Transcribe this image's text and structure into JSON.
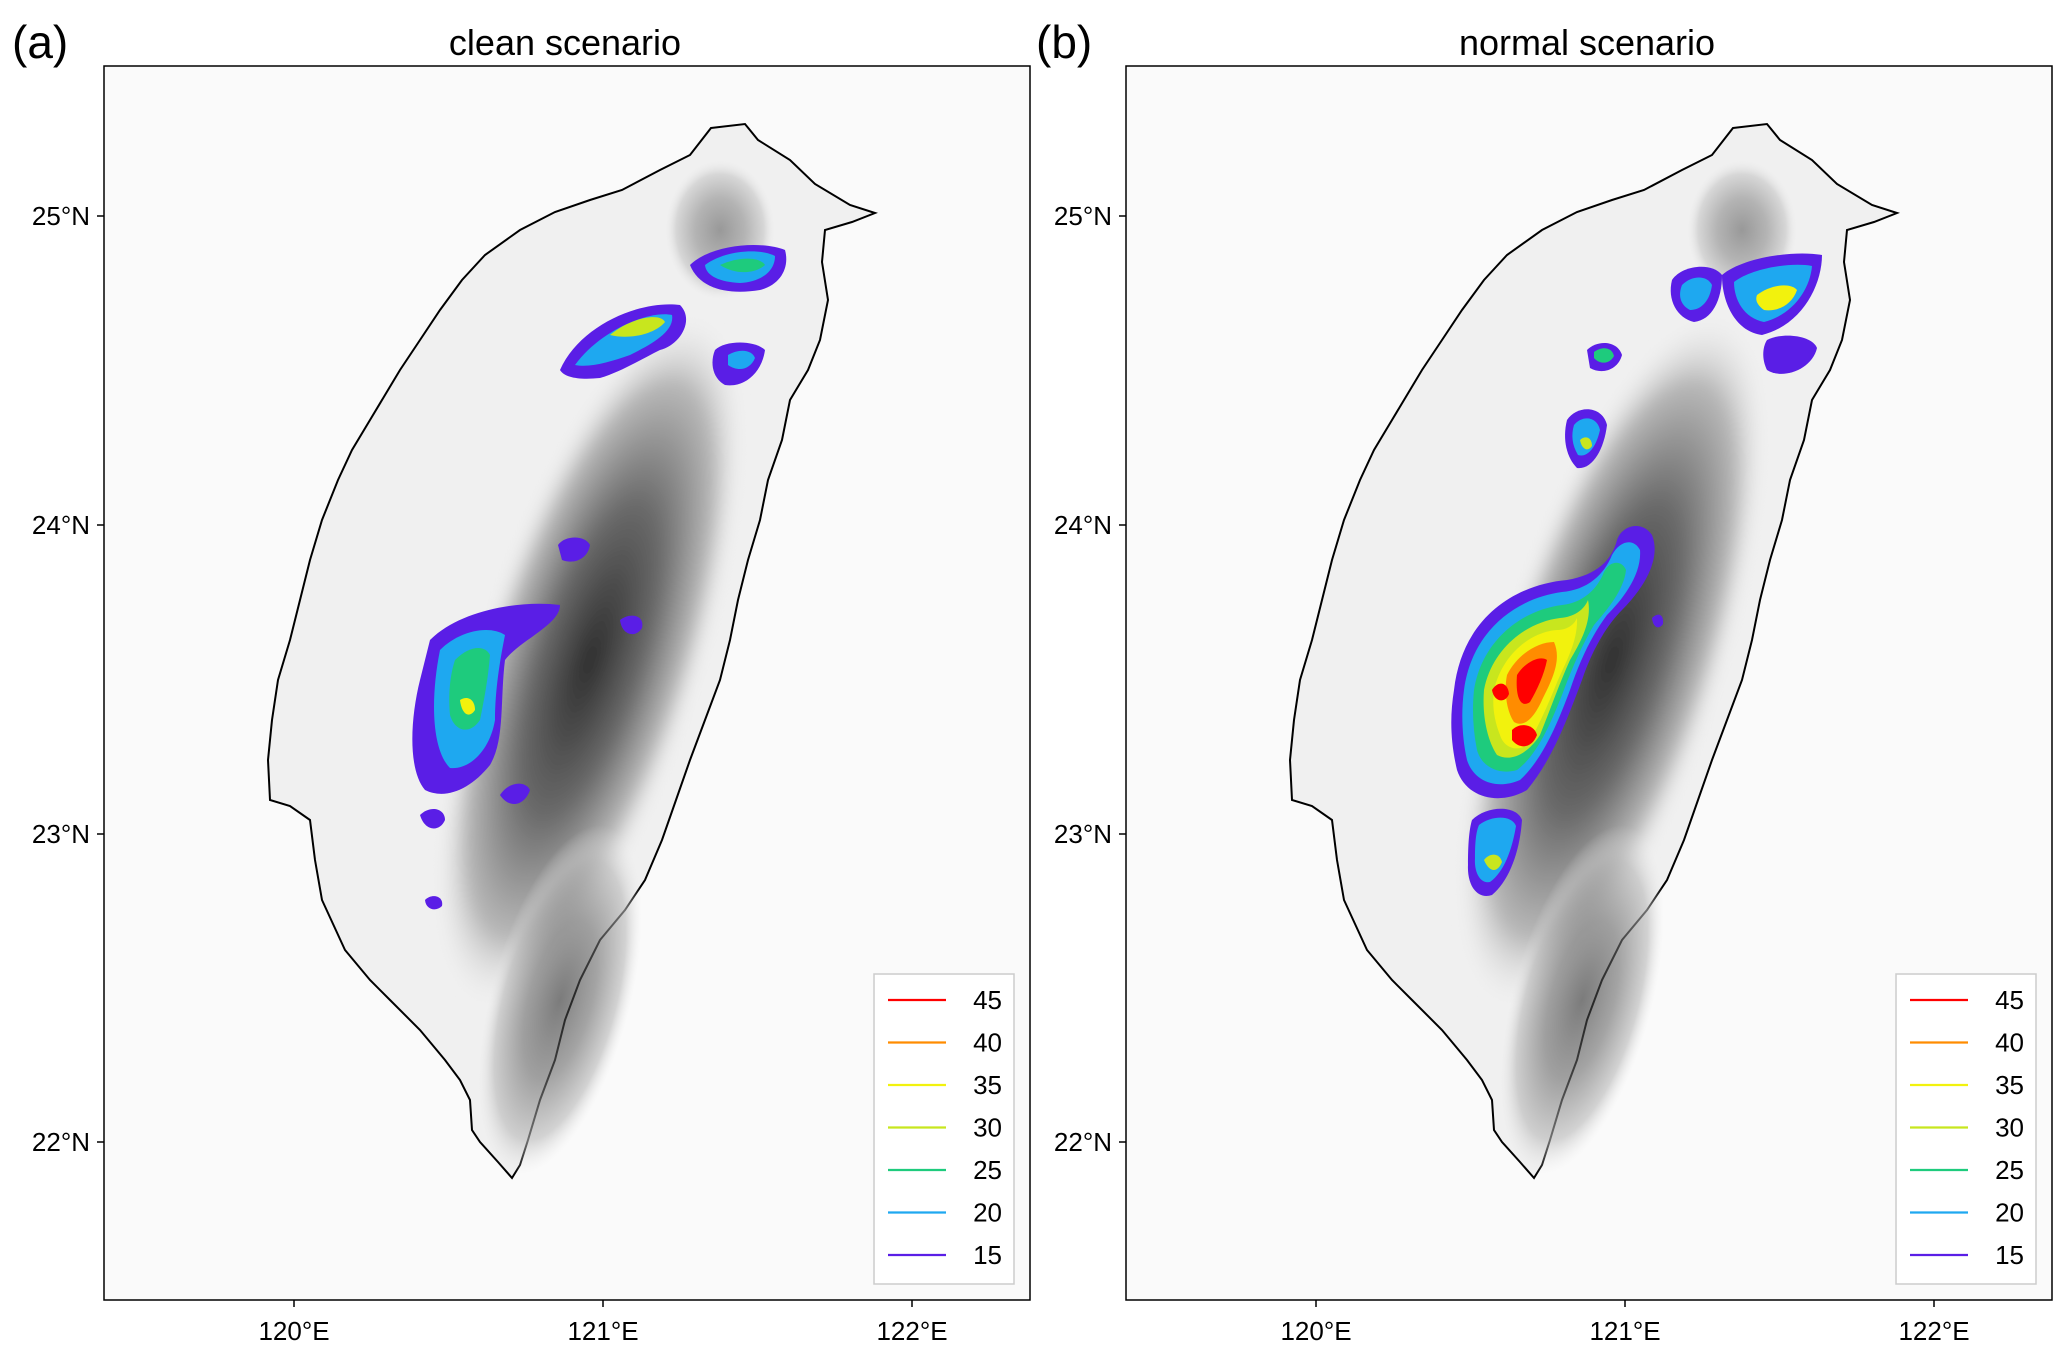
{
  "panels": [
    {
      "letter": "(a)",
      "title": "clean scenario",
      "x_ticks": [
        "120°E",
        "121°E",
        "122°E"
      ],
      "y_ticks": [
        "25°N",
        "24°N",
        "23°N",
        "22°N"
      ],
      "legend": [
        {
          "label": "45",
          "color": "#ff0000"
        },
        {
          "label": "40",
          "color": "#ff8c00"
        },
        {
          "label": "35",
          "color": "#f2f20d"
        },
        {
          "label": "30",
          "color": "#c8e61e"
        },
        {
          "label": "25",
          "color": "#1ecb7d"
        },
        {
          "label": "20",
          "color": "#1ea8f0"
        },
        {
          "label": "15",
          "color": "#5a1ee6"
        }
      ]
    },
    {
      "letter": "(b)",
      "title": "normal scenario",
      "x_ticks": [
        "120°E",
        "121°E",
        "122°E"
      ],
      "y_ticks": [
        "25°N",
        "24°N",
        "23°N",
        "22°N"
      ],
      "legend": [
        {
          "label": "45",
          "color": "#ff0000"
        },
        {
          "label": "40",
          "color": "#ff8c00"
        },
        {
          "label": "35",
          "color": "#f2f20d"
        },
        {
          "label": "30",
          "color": "#c8e61e"
        },
        {
          "label": "25",
          "color": "#1ecb7d"
        },
        {
          "label": "20",
          "color": "#1ea8f0"
        },
        {
          "label": "15",
          "color": "#5a1ee6"
        }
      ]
    }
  ],
  "colors": {
    "frame": "#000000",
    "ocean": "#fafafa",
    "land": "#f0f0f0",
    "terrain_low": "#cfcfcf",
    "terrain_mid": "#8f8f8f",
    "terrain_high": "#3a3a3a"
  }
}
